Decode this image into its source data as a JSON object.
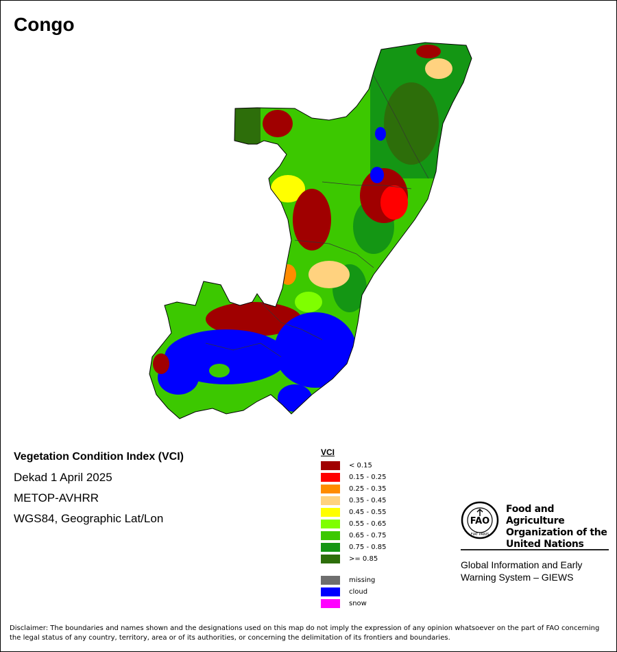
{
  "map": {
    "country": "Congo",
    "index_title": "Vegetation Condition Index (VCI)",
    "period": "Dekad 1 April 2025",
    "sensor": "METOP-AVHRR",
    "projection": "WGS84, Geographic Lat/Lon"
  },
  "legend": {
    "title": "VCI",
    "classes": [
      {
        "label": "< 0.15",
        "color": "#a00000"
      },
      {
        "label": "0.15 - 0.25",
        "color": "#ff0000"
      },
      {
        "label": "0.25 - 0.35",
        "color": "#ff8c00"
      },
      {
        "label": "0.35 - 0.45",
        "color": "#ffd27f"
      },
      {
        "label": "0.45 - 0.55",
        "color": "#ffff00"
      },
      {
        "label": "0.55 - 0.65",
        "color": "#7fff00"
      },
      {
        "label": "0.65 - 0.75",
        "color": "#3cc800"
      },
      {
        "label": "0.75 - 0.85",
        "color": "#149614"
      },
      {
        "label": ">= 0.85",
        "color": "#2d6e0a"
      }
    ],
    "extra": [
      {
        "label": "missing",
        "color": "#6e6e6e"
      },
      {
        "label": "cloud",
        "color": "#0000ff"
      },
      {
        "label": "snow",
        "color": "#ff00ff"
      }
    ]
  },
  "organization": {
    "name_line1": "Food and Agriculture",
    "name_line2": "Organization of the",
    "name_line3": "United Nations",
    "system_line1": "Global Information and Early",
    "system_line2": "Warning System – GIEWS",
    "logo_text": "FAO",
    "logo_motto": "FIAT PANIS"
  },
  "disclaimer": "Disclaimer: The boundaries and names shown and the designations used on this map do not imply the expression of any opinion whatsoever on the part of FAO concerning the legal status of any country, territory, area or of its authorities, or concerning the delimitation of its frontiers and boundaries."
}
